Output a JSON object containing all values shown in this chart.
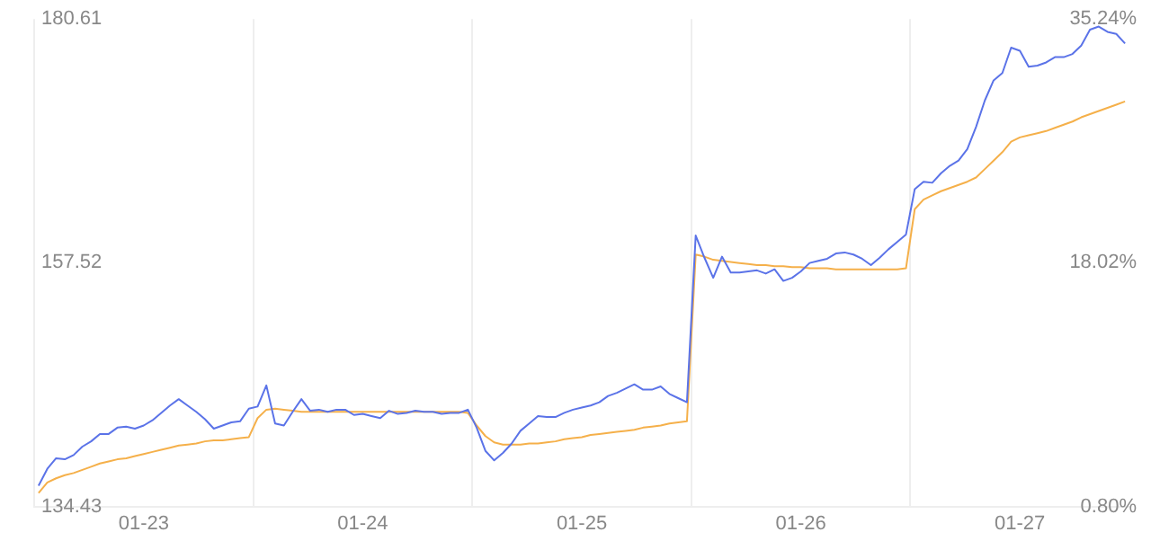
{
  "chart_data": {
    "type": "line",
    "categories": [
      null,
      null,
      null,
      null,
      null,
      null,
      null,
      null,
      null,
      null,
      null,
      null,
      "01-23",
      null,
      null,
      null,
      null,
      null,
      null,
      null,
      null,
      null,
      null,
      null,
      null,
      null,
      null,
      null,
      null,
      null,
      null,
      null,
      null,
      null,
      null,
      null,
      null,
      "01-24",
      null,
      null,
      null,
      null,
      null,
      null,
      null,
      null,
      null,
      null,
      null,
      null,
      null,
      null,
      null,
      null,
      null,
      null,
      null,
      null,
      null,
      null,
      null,
      null,
      "01-25",
      null,
      null,
      null,
      null,
      null,
      null,
      null,
      null,
      null,
      null,
      null,
      null,
      null,
      null,
      null,
      null,
      null,
      null,
      null,
      null,
      null,
      null,
      null,
      null,
      "01-26",
      null,
      null,
      null,
      null,
      null,
      null,
      null,
      null,
      null,
      null,
      null,
      null,
      null,
      null,
      null,
      null,
      null,
      null,
      null,
      null,
      null,
      null,
      null,
      null,
      "01-27",
      null,
      null,
      null,
      null,
      null,
      null,
      null,
      null,
      null,
      null,
      null,
      null
    ],
    "series": [
      {
        "color": "#5b73e8",
        "values": [
          136.4,
          138.0,
          139.0,
          138.9,
          139.3,
          140.1,
          140.6,
          141.3,
          141.3,
          141.9,
          142.0,
          141.8,
          142.1,
          142.6,
          143.3,
          144.0,
          144.6,
          144.0,
          143.4,
          142.7,
          141.8,
          142.1,
          142.4,
          142.5,
          143.7,
          143.9,
          145.9,
          142.3,
          142.1,
          143.4,
          144.6,
          143.5,
          143.6,
          143.4,
          143.6,
          143.6,
          143.1,
          143.2,
          143.0,
          142.8,
          143.5,
          143.2,
          143.3,
          143.5,
          143.4,
          143.4,
          143.2,
          143.3,
          143.3,
          143.6,
          141.9,
          139.7,
          138.8,
          139.5,
          140.4,
          141.6,
          142.3,
          143.0,
          142.9,
          142.9,
          143.3,
          143.6,
          143.8,
          144.0,
          144.3,
          144.9,
          145.2,
          145.6,
          146.0,
          145.5,
          145.5,
          145.8,
          145.1,
          144.7,
          144.3,
          160.1,
          158.0,
          156.1,
          158.1,
          156.6,
          156.6,
          156.7,
          156.8,
          156.5,
          156.9,
          155.8,
          156.1,
          156.7,
          157.5,
          157.7,
          157.9,
          158.4,
          158.5,
          158.3,
          157.9,
          157.3,
          158.0,
          158.8,
          159.5,
          160.2,
          164.5,
          165.2,
          165.1,
          166.0,
          166.7,
          167.2,
          168.3,
          170.4,
          172.9,
          174.8,
          175.5,
          177.9,
          177.6,
          176.1,
          176.2,
          176.5,
          177.0,
          177.0,
          177.3,
          178.1,
          179.6,
          179.9,
          179.4,
          179.2,
          178.3
        ]
      },
      {
        "color": "#f5b04a",
        "values": [
          135.7,
          136.7,
          137.1,
          137.4,
          137.6,
          137.9,
          138.2,
          138.5,
          138.7,
          138.9,
          139.0,
          139.2,
          139.4,
          139.6,
          139.8,
          140.0,
          140.2,
          140.3,
          140.4,
          140.6,
          140.7,
          140.7,
          140.8,
          140.9,
          141.0,
          142.8,
          143.6,
          143.7,
          143.6,
          143.5,
          143.4,
          143.4,
          143.4,
          143.4,
          143.4,
          143.4,
          143.4,
          143.4,
          143.4,
          143.4,
          143.4,
          143.4,
          143.4,
          143.4,
          143.4,
          143.4,
          143.4,
          143.4,
          143.4,
          143.3,
          142.1,
          141.1,
          140.5,
          140.3,
          140.3,
          140.3,
          140.4,
          140.4,
          140.5,
          140.6,
          140.8,
          140.9,
          141.0,
          141.2,
          141.3,
          141.4,
          141.5,
          141.6,
          141.7,
          141.9,
          142.0,
          142.1,
          142.3,
          142.4,
          142.5,
          158.3,
          158.1,
          157.8,
          157.7,
          157.6,
          157.5,
          157.4,
          157.3,
          157.3,
          157.2,
          157.2,
          157.1,
          157.1,
          157.0,
          157.0,
          157.0,
          156.9,
          156.9,
          156.9,
          156.9,
          156.9,
          156.9,
          156.9,
          156.9,
          157.0,
          162.6,
          163.5,
          163.9,
          164.3,
          164.6,
          164.9,
          165.2,
          165.6,
          166.4,
          167.2,
          168.0,
          169.0,
          169.4,
          169.6,
          169.8,
          170.0,
          170.3,
          170.6,
          170.9,
          171.3,
          171.6,
          171.9,
          172.2,
          172.5,
          172.8
        ]
      }
    ],
    "ylim": [
      134.43,
      180.61
    ],
    "yticks": [
      134.43,
      157.52,
      180.61
    ],
    "y2lim": [
      0.8,
      35.24
    ],
    "y2ticks": [
      {
        "value": 0.8,
        "label": "0.80%"
      },
      {
        "value": 18.02,
        "label": "18.02%"
      },
      {
        "value": 35.24,
        "label": "35.24%"
      }
    ],
    "grid": "x",
    "legend": false,
    "marker": "none",
    "line_style": "solid"
  }
}
